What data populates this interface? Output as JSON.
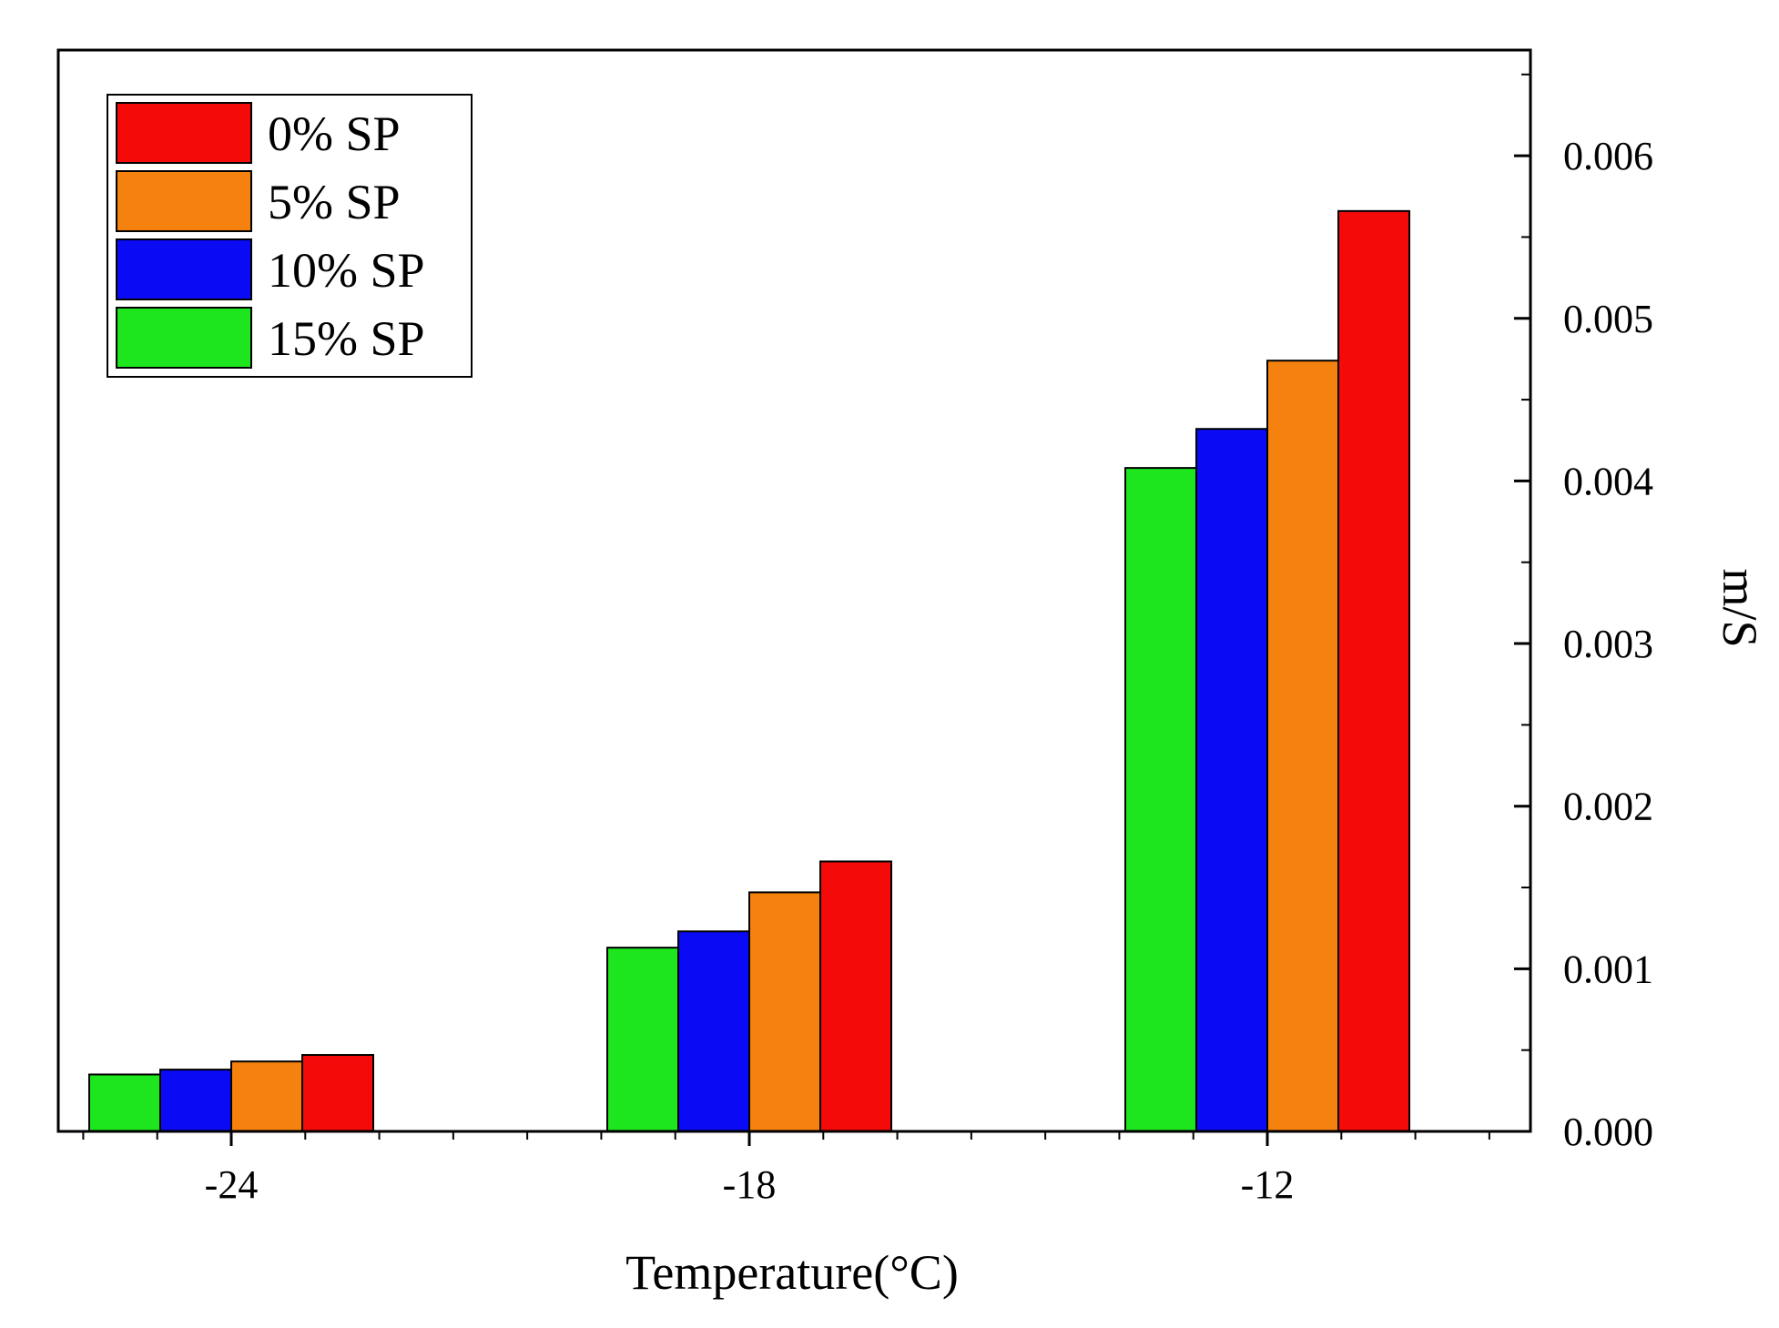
{
  "chart_data": {
    "type": "bar",
    "title": "",
    "xlabel": "Temperature(°C)",
    "ylabel": "m/S",
    "y_axis_side": "right",
    "categories": [
      "-24",
      "-18",
      "-12"
    ],
    "ylim": [
      0,
      0.0065
    ],
    "yticks": [
      "0.000",
      "0.001",
      "0.002",
      "0.003",
      "0.004",
      "0.005",
      "0.006"
    ],
    "legend_position": "top-left",
    "series": [
      {
        "name": "15% SP",
        "color": "#1ee61e",
        "values": [
          0.00035,
          0.00113,
          0.00408
        ]
      },
      {
        "name": "10% SP",
        "color": "#0a0af5",
        "values": [
          0.00038,
          0.00123,
          0.00432
        ]
      },
      {
        "name": "5% SP",
        "color": "#f5820f",
        "values": [
          0.00043,
          0.00147,
          0.00474
        ]
      },
      {
        "name": "0% SP",
        "color": "#f50a0a",
        "values": [
          0.00047,
          0.00166,
          0.00566
        ]
      }
    ],
    "legend_order": [
      "0% SP",
      "5% SP",
      "10% SP",
      "15% SP"
    ]
  }
}
